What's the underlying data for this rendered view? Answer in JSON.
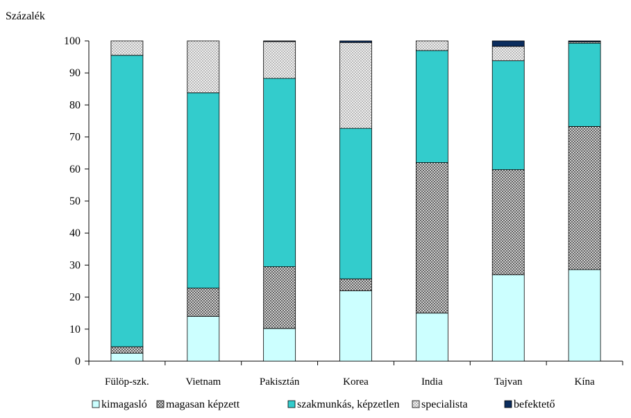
{
  "chart_data": {
    "type": "bar",
    "stacked": true,
    "title": "",
    "xlabel": "",
    "ylabel": "Százalék",
    "ylim": [
      0,
      100
    ],
    "yticks": [
      0,
      10,
      20,
      30,
      40,
      50,
      60,
      70,
      80,
      90,
      100
    ],
    "grid": false,
    "legend_position": "bottom",
    "categories": [
      "Fülöp-szk.",
      "Vietnam",
      "Pakisztán",
      "Korea",
      "India",
      "Tajvan",
      "Kína"
    ],
    "series": [
      {
        "name": "kimagasló",
        "color": "#ccffff",
        "pattern": "solid",
        "values": [
          2.5,
          14.0,
          10.2,
          22.0,
          15.0,
          27.0,
          28.6
        ]
      },
      {
        "name": "magasan képzett",
        "color": "#9a9a9a",
        "pattern": "crosshatch-dark",
        "values": [
          2.0,
          8.8,
          19.3,
          3.7,
          47.0,
          32.8,
          44.7
        ]
      },
      {
        "name": "szakmunkás, képzetlen",
        "color": "#33cccc",
        "pattern": "solid",
        "values": [
          91.0,
          61.0,
          58.8,
          47.0,
          35.0,
          34.0,
          26.0
        ]
      },
      {
        "name": "specialista",
        "color": "#cfcfcf",
        "pattern": "crosshatch-light",
        "values": [
          4.5,
          16.2,
          11.5,
          26.8,
          3.0,
          4.5,
          0.4
        ]
      },
      {
        "name": "befektető",
        "color": "#0b2d5e",
        "pattern": "solid",
        "values": [
          0.0,
          0.0,
          0.2,
          0.5,
          0.0,
          1.7,
          0.3
        ]
      }
    ]
  }
}
